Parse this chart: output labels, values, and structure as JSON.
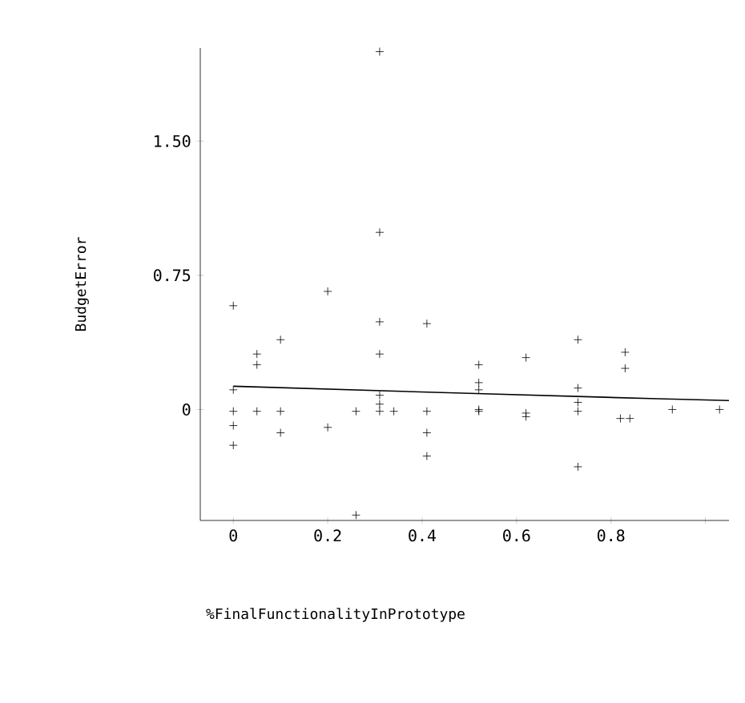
{
  "chart_data": {
    "type": "scatter",
    "xlabel": "%FinalFunctionalityInPrototype",
    "ylabel": "BudgetError",
    "xlim": [
      -0.07,
      1.05
    ],
    "ylim": [
      -0.62,
      2.02
    ],
    "xticks": [
      0,
      0.2,
      0.4,
      0.6,
      0.8,
      {
        "value": 1.0,
        "label": null
      }
    ],
    "yticks": [
      0,
      0.75,
      {
        "value": 1.5,
        "label": "1.50"
      }
    ],
    "grid": false,
    "marker": "cross",
    "series": [
      {
        "color": "#000000",
        "x": [
          0,
          0,
          0,
          0,
          0,
          0.05,
          0.05,
          0.05,
          0.1,
          0.1,
          0.1,
          0.2,
          0.2,
          0.26,
          0.26,
          0.31,
          0.31,
          0.31,
          0.31,
          0.31,
          0.31,
          0.31,
          0.34,
          0.41,
          0.41,
          0.41,
          0.41,
          0.52,
          0.52,
          0.52,
          0.52,
          0.52,
          0.62,
          0.62,
          0.62,
          0.73,
          0.73,
          0.73,
          0.73,
          0.73,
          0.83,
          0.83,
          0.82,
          0.84,
          0.93,
          1.03
        ],
        "values": [
          0.58,
          0.11,
          -0.01,
          -0.09,
          -0.2,
          0.31,
          0.25,
          -0.01,
          0.39,
          -0.01,
          -0.13,
          0.66,
          -0.1,
          -0.01,
          -0.59,
          2.0,
          0.99,
          0.49,
          0.31,
          0.08,
          0.03,
          -0.01,
          -0.01,
          0.48,
          -0.01,
          -0.13,
          -0.26,
          0.25,
          0.15,
          0.11,
          -0.01,
          0.0,
          0.29,
          -0.02,
          -0.04,
          0.39,
          0.12,
          0.04,
          -0.01,
          -0.32,
          0.32,
          0.23,
          -0.05,
          -0.05,
          0.0,
          0.0
        ]
      },
      {
        "type": "line",
        "marker": "none",
        "color": "#000000",
        "x": [
          0,
          0.5,
          0.9,
          1.05
        ],
        "values": [
          0.13,
          0.09,
          0.06,
          0.05
        ]
      }
    ]
  }
}
